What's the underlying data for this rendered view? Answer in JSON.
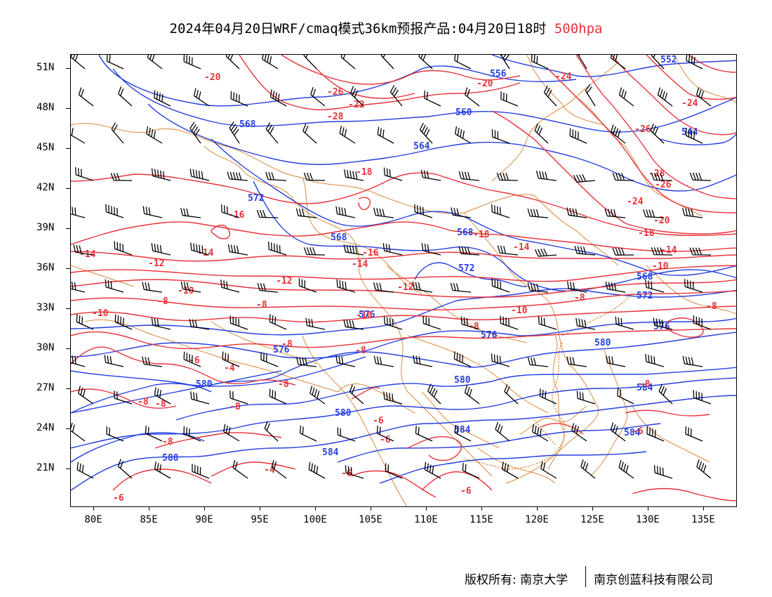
{
  "title": {
    "main": "2024年04月20日WRF/cmaq模式36km预报产品:04月20日18时",
    "level": "500hpa"
  },
  "colors": {
    "height_contour": "#2540e0",
    "temperature_contour": "#e8333a",
    "boundary": "#d98a3c",
    "wind_barb": "#000000"
  },
  "map": {
    "lat_labels": [
      "51N",
      "48N",
      "45N",
      "42N",
      "39N",
      "36N",
      "33N",
      "30N",
      "27N",
      "24N",
      "21N"
    ],
    "lon_labels": [
      "80E",
      "85E",
      "90E",
      "95E",
      "100E",
      "105E",
      "110E",
      "115E",
      "120E",
      "125E",
      "130E",
      "135E"
    ],
    "height_contours": [
      {
        "value": "552"
      },
      {
        "value": "556"
      },
      {
        "value": "560"
      },
      {
        "value": "564"
      },
      {
        "value": "568"
      },
      {
        "value": "572"
      },
      {
        "value": "576"
      },
      {
        "value": "580"
      },
      {
        "value": "584"
      },
      {
        "value": "588"
      },
      {
        "value": "544"
      }
    ],
    "temp_labels": [
      "-28",
      "-26",
      "-24",
      "-22",
      "-20",
      "-18",
      "-16",
      "-14",
      "-12",
      "-10",
      "-8",
      "-6",
      "-4"
    ]
  },
  "footer": {
    "copyright": "版权所有: 南京大学",
    "company": "南京创蓝科技有限公司"
  }
}
